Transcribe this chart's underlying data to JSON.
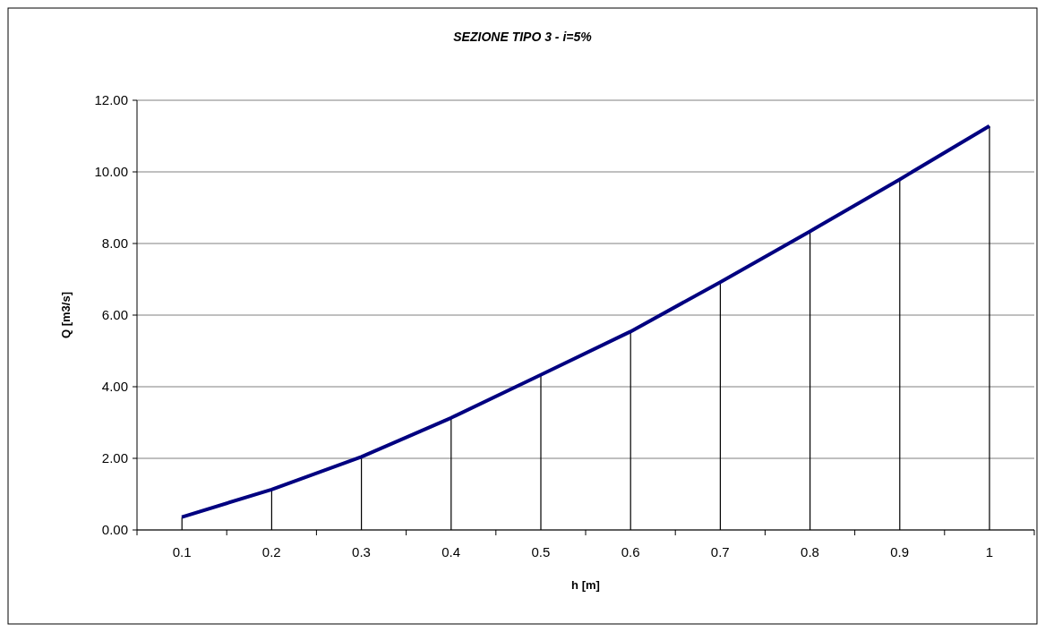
{
  "chart_data": {
    "type": "line",
    "title": "SEZIONE TIPO 3 - i=5%",
    "xlabel": "h [m]",
    "ylabel": "Q [m3/s]",
    "categories": [
      "0.1",
      "0.2",
      "0.3",
      "0.4",
      "0.5",
      "0.6",
      "0.7",
      "0.8",
      "0.9",
      "1"
    ],
    "series": [
      {
        "type": "bar",
        "color": "#000000",
        "values": [
          0.36,
          1.13,
          2.04,
          3.13,
          4.33,
          5.54,
          6.92,
          8.34,
          9.79,
          11.28
        ]
      },
      {
        "color": "#000080",
        "values": [
          0.36,
          1.13,
          2.04,
          3.13,
          4.33,
          5.54,
          6.92,
          8.34,
          9.79,
          11.28
        ]
      }
    ],
    "ylim": [
      0,
      12
    ],
    "yticks": [
      {
        "value": 0,
        "label": "0.00"
      },
      {
        "value": 2,
        "label": "2.00"
      },
      {
        "value": 4,
        "label": "4.00"
      },
      {
        "value": 6,
        "label": "6.00"
      },
      {
        "value": 8,
        "label": "8.00"
      },
      {
        "value": 10,
        "label": "10.00"
      },
      {
        "value": 12,
        "label": "12.00"
      }
    ],
    "grid": "y",
    "marker": "none",
    "line_style": "solid"
  }
}
